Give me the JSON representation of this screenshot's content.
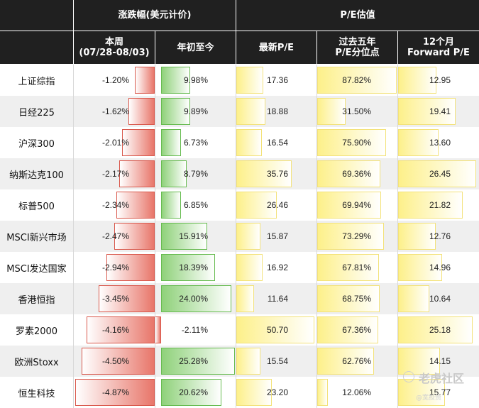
{
  "header": {
    "group_change": "涨跌幅(美元计价)",
    "group_pe": "P/E估值",
    "col_week_line1": "本周",
    "col_week_line2": "(07/28-08/03)",
    "col_ytd": "年初至今",
    "col_pe": "最新P/E",
    "col_pct_line1": "过去五年",
    "col_pct_line2": "P/E分位点",
    "col_fwd_line1": "12个月",
    "col_fwd_line2": "Forward P/E"
  },
  "watermark": {
    "text": "老虎社区",
    "sub": "@宽投资"
  },
  "colors": {
    "header_bg": "#202020",
    "row_bg_alt": "#efefef",
    "neg_bar": "#e8766a",
    "pos_bar": "#8fd17a",
    "pe_bar": "#fdf08a"
  },
  "chart_data": {
    "type": "table",
    "rows": [
      {
        "name": "上证综指",
        "week": -1.2,
        "week_label": "-1.20%",
        "ytd": 9.98,
        "ytd_label": "9.98%",
        "pe": 17.36,
        "pe_label": "17.36",
        "pct": 87.82,
        "pct_label": "87.82%",
        "fwd": 12.95,
        "fwd_label": "12.95"
      },
      {
        "name": "日经225",
        "week": -1.62,
        "week_label": "-1.62%",
        "ytd": 9.89,
        "ytd_label": "9.89%",
        "pe": 18.88,
        "pe_label": "18.88",
        "pct": 31.5,
        "pct_label": "31.50%",
        "fwd": 19.41,
        "fwd_label": "19.41"
      },
      {
        "name": "沪深300",
        "week": -2.01,
        "week_label": "-2.01%",
        "ytd": 6.73,
        "ytd_label": "6.73%",
        "pe": 16.54,
        "pe_label": "16.54",
        "pct": 75.9,
        "pct_label": "75.90%",
        "fwd": 13.6,
        "fwd_label": "13.60"
      },
      {
        "name": "纳斯达克100",
        "week": -2.17,
        "week_label": "-2.17%",
        "ytd": 8.79,
        "ytd_label": "8.79%",
        "pe": 35.76,
        "pe_label": "35.76",
        "pct": 69.36,
        "pct_label": "69.36%",
        "fwd": 26.45,
        "fwd_label": "26.45"
      },
      {
        "name": "标普500",
        "week": -2.34,
        "week_label": "-2.34%",
        "ytd": 6.85,
        "ytd_label": "6.85%",
        "pe": 26.46,
        "pe_label": "26.46",
        "pct": 69.94,
        "pct_label": "69.94%",
        "fwd": 21.82,
        "fwd_label": "21.82"
      },
      {
        "name": "MSCI新兴市场",
        "week": -2.47,
        "week_label": "-2.47%",
        "ytd": 15.91,
        "ytd_label": "15.91%",
        "pe": 15.87,
        "pe_label": "15.87",
        "pct": 73.29,
        "pct_label": "73.29%",
        "fwd": 12.76,
        "fwd_label": "12.76"
      },
      {
        "name": "MSCI发达国家",
        "week": -2.94,
        "week_label": "-2.94%",
        "ytd": 18.39,
        "ytd_label": "18.39%",
        "pe": 16.92,
        "pe_label": "16.92",
        "pct": 67.81,
        "pct_label": "67.81%",
        "fwd": 14.96,
        "fwd_label": "14.96"
      },
      {
        "name": "香港恒指",
        "week": -3.45,
        "week_label": "-3.45%",
        "ytd": 24.0,
        "ytd_label": "24.00%",
        "pe": 11.64,
        "pe_label": "11.64",
        "pct": 68.75,
        "pct_label": "68.75%",
        "fwd": 10.64,
        "fwd_label": "10.64"
      },
      {
        "name": "罗素2000",
        "week": -4.16,
        "week_label": "-4.16%",
        "ytd": -2.11,
        "ytd_label": "-2.11%",
        "pe": 50.7,
        "pe_label": "50.70",
        "pct": 67.36,
        "pct_label": "67.36%",
        "fwd": 25.18,
        "fwd_label": "25.18"
      },
      {
        "name": "欧洲Stoxx",
        "week": -4.5,
        "week_label": "-4.50%",
        "ytd": 25.28,
        "ytd_label": "25.28%",
        "pe": 15.54,
        "pe_label": "15.54",
        "pct": 62.76,
        "pct_label": "62.76%",
        "fwd": 14.15,
        "fwd_label": "14.15"
      },
      {
        "name": "恒生科技",
        "week": -4.87,
        "week_label": "-4.87%",
        "ytd": 20.62,
        "ytd_label": "20.62%",
        "pe": 23.2,
        "pe_label": "23.20",
        "pct": 12.06,
        "pct_label": "12.06%",
        "fwd": 15.77,
        "fwd_label": "15.77"
      }
    ]
  }
}
